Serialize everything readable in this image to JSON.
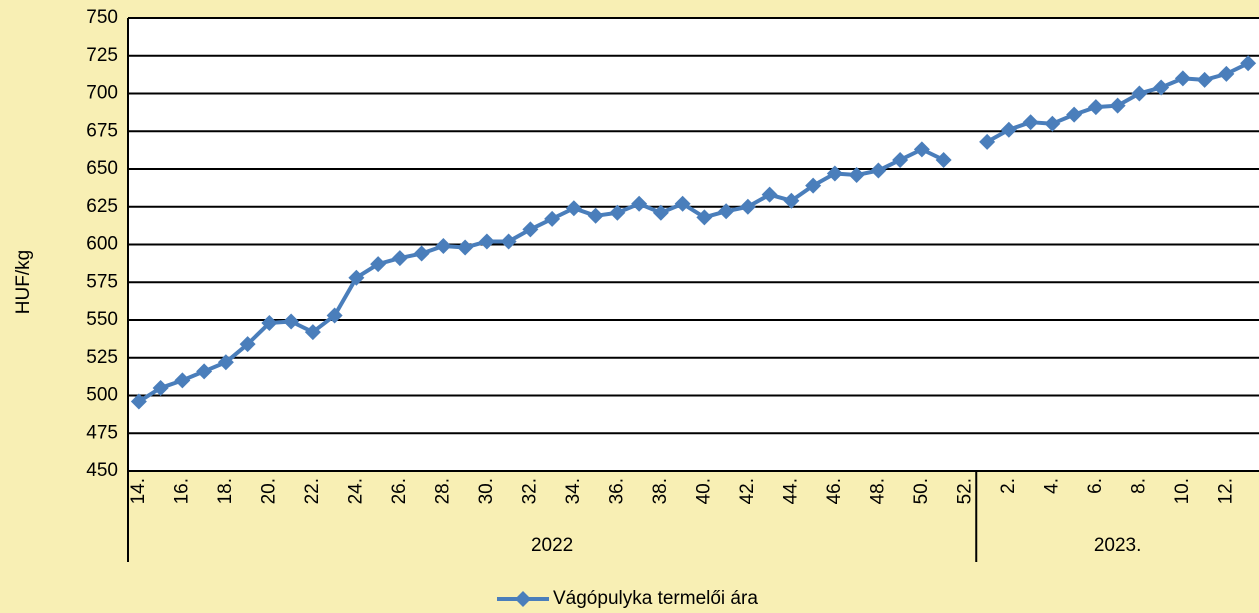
{
  "chart_data": {
    "type": "line",
    "y_label": "HUF/kg",
    "categories": [
      "14.",
      null,
      "16.",
      null,
      "18.",
      null,
      "20.",
      null,
      "22.",
      null,
      "24.",
      null,
      "26.",
      null,
      "28.",
      null,
      "30.",
      null,
      "32.",
      null,
      "34.",
      null,
      "36.",
      null,
      "38.",
      null,
      "40.",
      null,
      "42.",
      null,
      "44.",
      null,
      "46.",
      null,
      "48.",
      null,
      "50.",
      null,
      "52.",
      null,
      "2.",
      null,
      "4.",
      null,
      "6.",
      null,
      "8.",
      null,
      "10.",
      null,
      "12.",
      null
    ],
    "x_groups": [
      {
        "label": "2022",
        "count": 39
      },
      {
        "label": "2023.",
        "count": 13
      }
    ],
    "series": [
      {
        "name": "Vágópulyka termelői ára",
        "color": "#4a7ebb",
        "values": [
          496,
          505,
          510,
          516,
          522,
          534,
          548,
          549,
          542,
          553,
          578,
          587,
          591,
          594,
          599,
          598,
          602,
          602,
          610,
          617,
          624,
          619,
          621,
          627,
          621,
          627,
          618,
          622,
          625,
          633,
          629,
          639,
          647,
          646,
          649,
          656,
          663,
          656,
          null,
          668,
          676,
          681,
          680,
          686,
          691,
          692,
          700,
          704,
          710,
          709,
          713,
          720
        ]
      }
    ],
    "ylim": [
      450,
      750
    ],
    "yticks": [
      450,
      475,
      500,
      525,
      550,
      575,
      600,
      625,
      650,
      675,
      700,
      725,
      750
    ],
    "grid": true,
    "legend": "bottom"
  }
}
